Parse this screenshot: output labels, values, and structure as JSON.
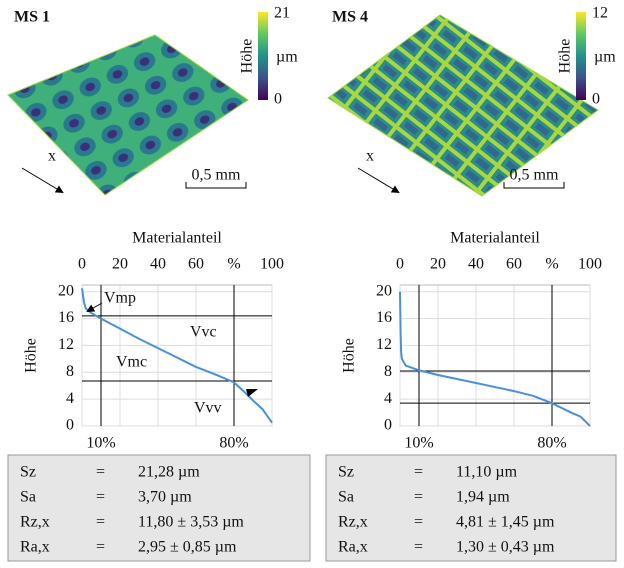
{
  "panels": [
    {
      "title": "MS 1",
      "colorbar": {
        "label": "Höhe",
        "unit": "µm",
        "max": 21,
        "min": 0
      },
      "axis_label": "x",
      "scale": "0,5 mm"
    },
    {
      "title": "MS 4",
      "colorbar": {
        "label": "Höhe",
        "unit": "µm",
        "max": 12,
        "min": 0
      },
      "axis_label": "x",
      "scale": "0,5 mm"
    }
  ],
  "chart_data": [
    {
      "type": "line",
      "x_label": "Materialanteil",
      "y_label": "Höhe",
      "xlim": [
        0,
        100
      ],
      "xticks": [
        0,
        20,
        40,
        60,
        {
          "value": 80,
          "label": "%"
        },
        100
      ],
      "ylim": [
        0,
        21
      ],
      "yticks": [
        0,
        4,
        8,
        12,
        16,
        20
      ],
      "x": [
        0,
        1,
        2,
        5,
        10,
        20,
        30,
        40,
        50,
        60,
        70,
        80,
        85,
        90,
        95,
        100
      ],
      "series": [
        {
          "color": "#4a90d9",
          "values": [
            20.5,
            18.5,
            17.5,
            16.8,
            16,
            14.5,
            13,
            11.6,
            10.2,
            8.8,
            7.7,
            6.5,
            5.2,
            3.8,
            2.5,
            0.5
          ]
        }
      ],
      "vlines": [
        {
          "value": 10,
          "label": "10%"
        },
        {
          "value": 80,
          "label": "80%"
        }
      ],
      "hlines": [
        16.4,
        6.7
      ],
      "annotations": [
        "Vmp",
        "Vvc",
        "Vmc",
        "Vvv"
      ]
    },
    {
      "type": "line",
      "x_label": "Materialanteil",
      "y_label": "Höhe",
      "xlim": [
        0,
        100
      ],
      "xticks": [
        0,
        20,
        40,
        60,
        {
          "value": 80,
          "label": "%"
        },
        100
      ],
      "ylim": [
        0,
        21
      ],
      "yticks": [
        0,
        4,
        8,
        12,
        16,
        20
      ],
      "x": [
        0,
        0.3,
        0.6,
        1,
        3,
        10,
        20,
        30,
        40,
        50,
        60,
        70,
        80,
        90,
        95,
        100
      ],
      "series": [
        {
          "color": "#4a90d9",
          "values": [
            20,
            14,
            11,
            10,
            9,
            8.3,
            7.6,
            7,
            6.4,
            5.8,
            5.2,
            4.5,
            3.4,
            2,
            1.4,
            0
          ]
        }
      ],
      "vlines": [
        {
          "value": 10,
          "label": "10%"
        },
        {
          "value": 80,
          "label": "80%"
        }
      ],
      "hlines": [
        8.2,
        3.4
      ]
    }
  ],
  "tables": [
    {
      "rows": [
        [
          "Sz",
          "=",
          "21,28 µm"
        ],
        [
          "Sa",
          "=",
          "3,70 µm"
        ],
        [
          "Rz,x",
          "=",
          "11,80 ± 3,53 µm"
        ],
        [
          "Ra,x",
          "=",
          "2,95 ± 0,85 µm"
        ]
      ]
    },
    {
      "rows": [
        [
          "Sz",
          "=",
          "11,10 µm"
        ],
        [
          "Sa",
          "=",
          "1,94 µm"
        ],
        [
          "Rz,x",
          "=",
          "4,81 ± 1,45 µm"
        ],
        [
          "Ra,x",
          "=",
          "1,30 ± 0,43 µm"
        ]
      ]
    }
  ]
}
